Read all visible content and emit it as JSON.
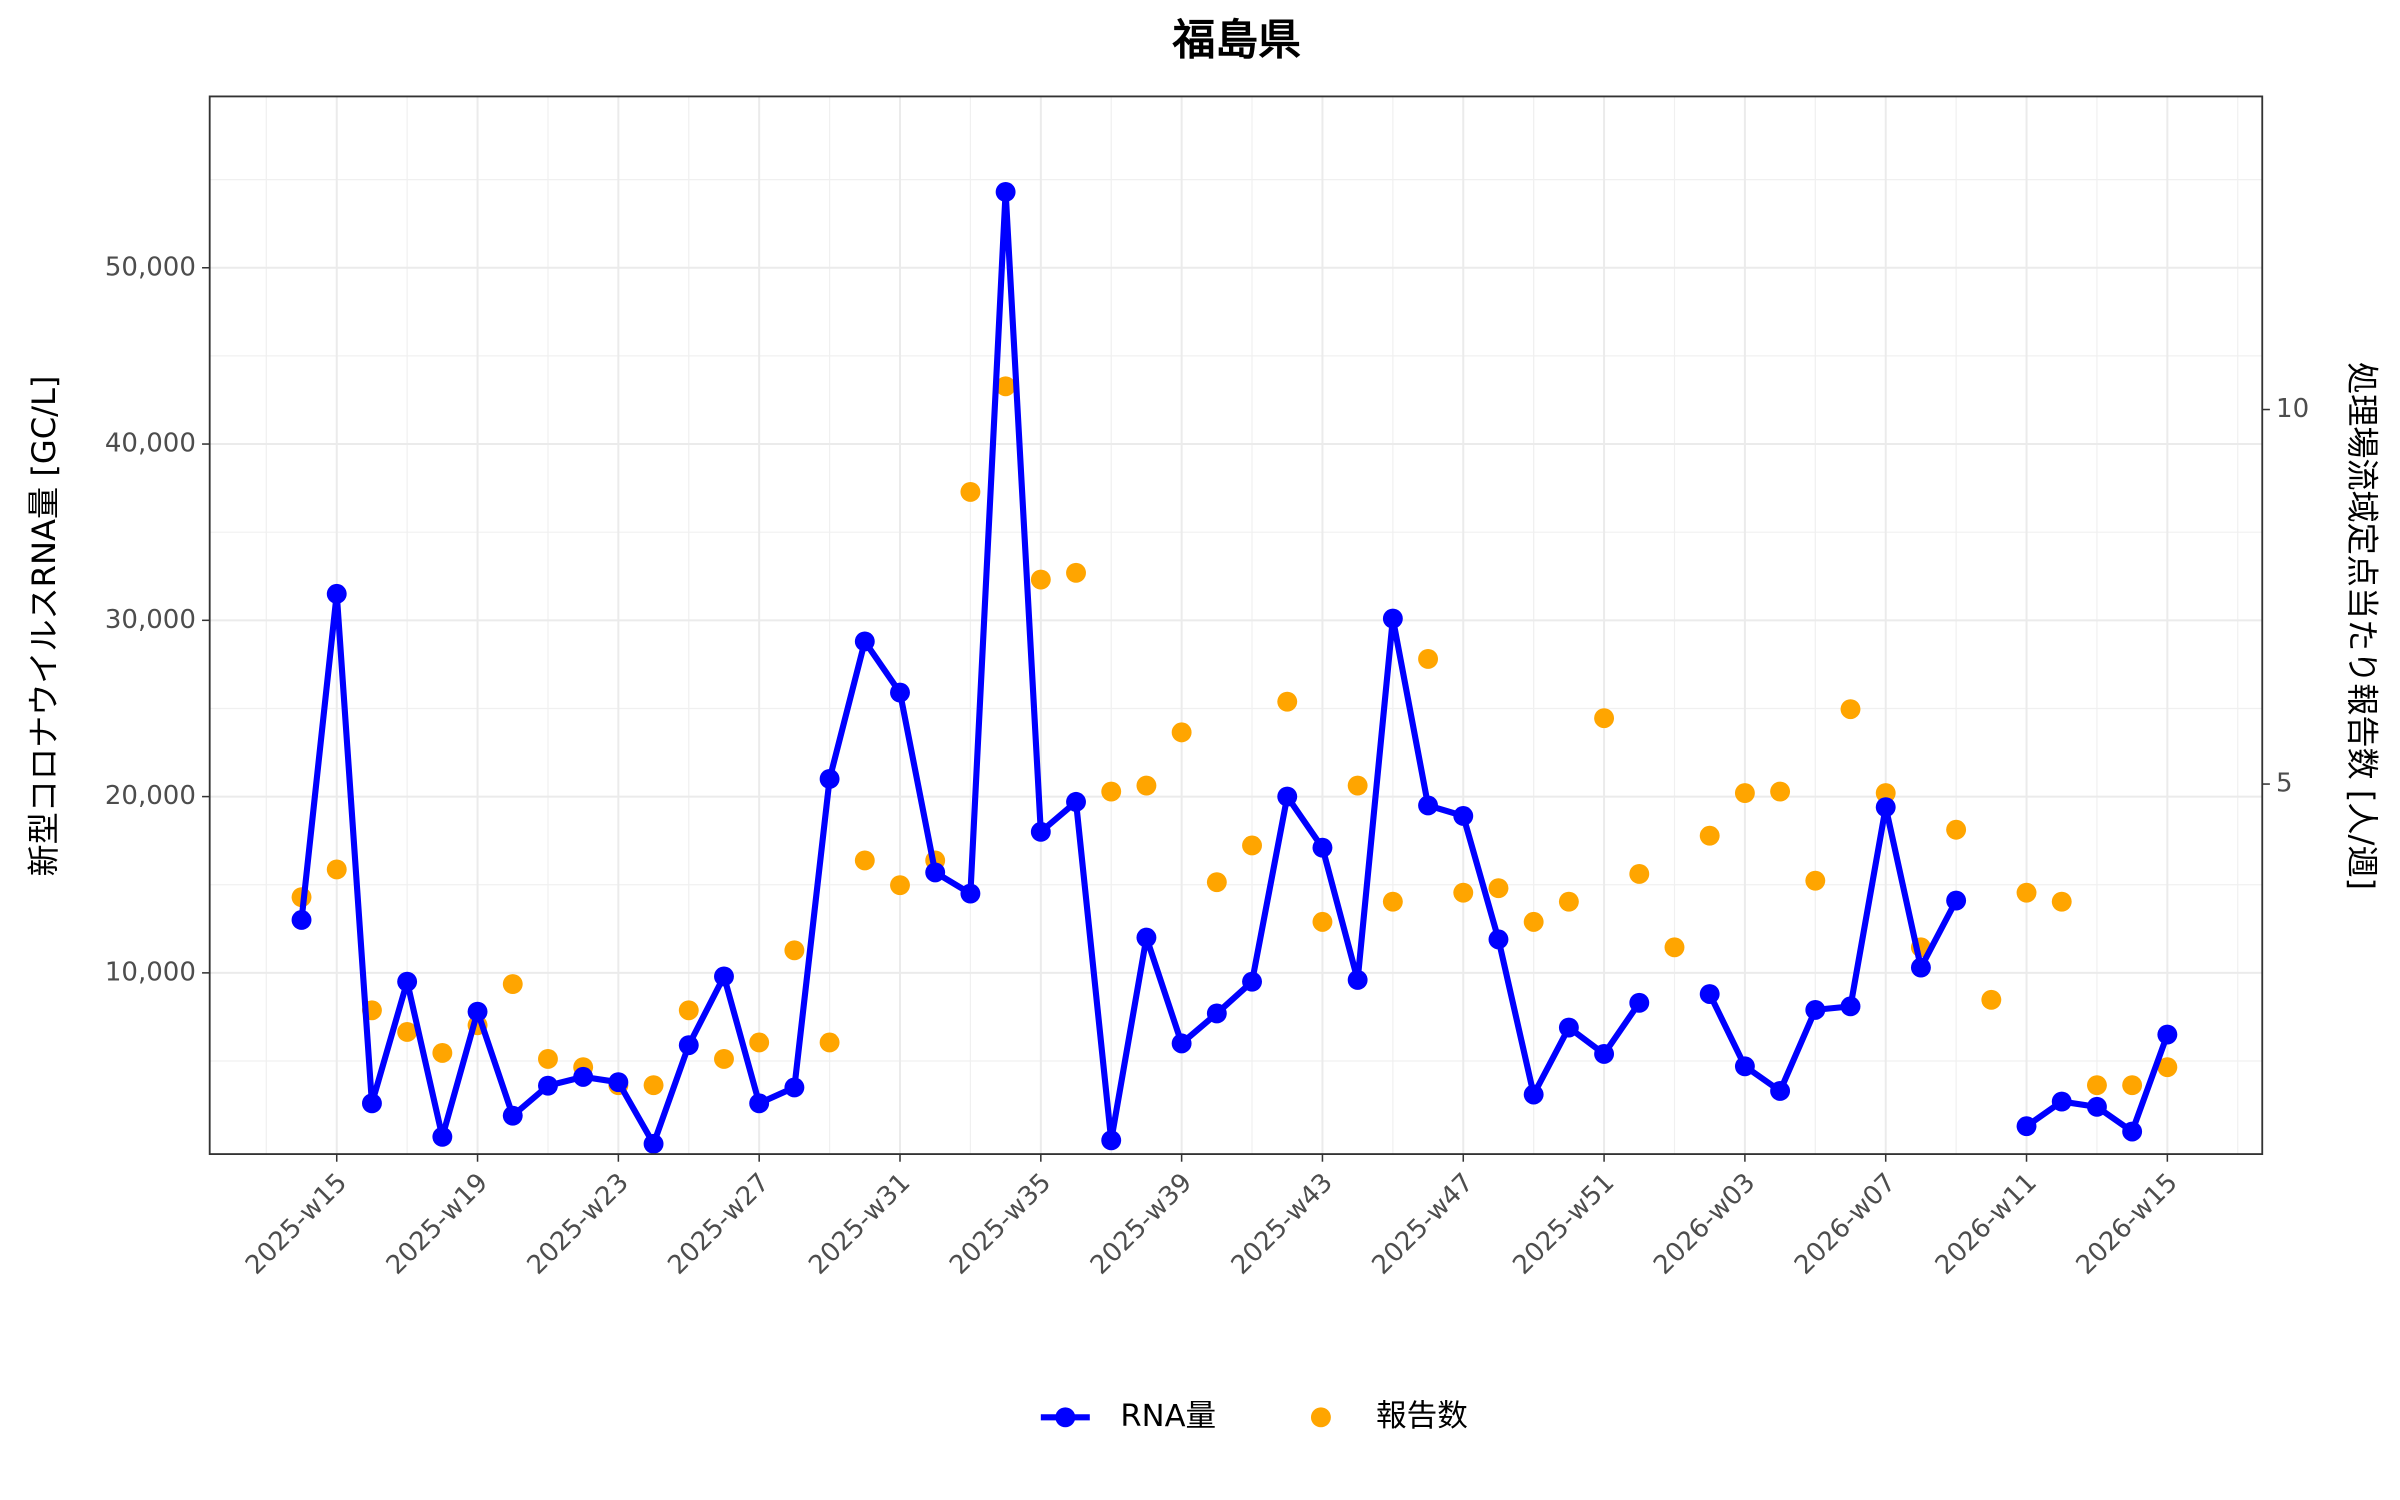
{
  "chart_data": {
    "type": "line-scatter",
    "title": "福島県",
    "y_label": "新型コロナウイルスRNA量 [GC/L]",
    "y2_label": "処理場流域定点当たり報告数 [人/週]",
    "categories": [
      null,
      "2025-w15",
      null,
      null,
      null,
      "2025-w19",
      null,
      null,
      null,
      "2025-w23",
      null,
      null,
      null,
      "2025-w27",
      null,
      null,
      null,
      "2025-w31",
      null,
      null,
      null,
      "2025-w35",
      null,
      null,
      null,
      "2025-w39",
      null,
      null,
      null,
      "2025-w43",
      null,
      null,
      null,
      "2025-w47",
      null,
      null,
      null,
      "2025-w51",
      null,
      null,
      null,
      "2026-w03",
      null,
      null,
      null,
      "2026-w07",
      null,
      null,
      null,
      "2026-w11",
      null,
      null,
      null,
      "2026-w15"
    ],
    "series": [
      {
        "name": "RNA量",
        "color": "#0000ff",
        "type": "line",
        "axis": "y",
        "values": [
          13000,
          31500,
          2600,
          9500,
          700,
          7800,
          1900,
          3600,
          4100,
          3800,
          300,
          5900,
          9800,
          2600,
          3500,
          21000,
          28800,
          25900,
          15700,
          14500,
          54300,
          18000,
          19700,
          500,
          12000,
          6000,
          7700,
          9500,
          20000,
          17100,
          9600,
          30100,
          19500,
          18900,
          11900,
          3100,
          6900,
          5400,
          8300,
          null,
          8800,
          4700,
          3300,
          7900,
          8100,
          19400,
          10300,
          14100,
          null,
          1300,
          2700,
          2400,
          1000,
          6500
        ]
      },
      {
        "name": "報告数",
        "color": "#ffa500",
        "type": "scatter",
        "axis": "y2",
        "values": [
          3.49,
          3.86,
          1.98,
          1.69,
          1.41,
          1.78,
          2.33,
          1.33,
          1.22,
          0.98,
          0.98,
          1.98,
          1.33,
          1.55,
          2.78,
          1.55,
          3.98,
          3.65,
          3.98,
          8.9,
          10.31,
          7.73,
          7.82,
          4.9,
          4.98,
          5.69,
          3.69,
          4.18,
          6.1,
          3.16,
          4.98,
          3.43,
          6.67,
          3.55,
          3.61,
          3.16,
          3.43,
          5.88,
          3.8,
          2.82,
          4.31,
          4.88,
          4.9,
          3.71,
          6.0,
          4.88,
          2.82,
          4.39,
          2.12,
          3.55,
          3.43,
          0.98,
          0.98,
          1.22
        ]
      }
    ],
    "ylim": [
      -280,
      59720
    ],
    "yticks": [
      {
        "value": 10000,
        "label": "10,000"
      },
      {
        "value": 20000,
        "label": "20,000"
      },
      {
        "value": 30000,
        "label": "30,000"
      },
      {
        "value": 40000,
        "label": "40,000"
      },
      {
        "value": 50000,
        "label": "50,000"
      }
    ],
    "y2lim": [
      0.06,
      14.18
    ],
    "y2ticks": [
      5,
      10
    ],
    "grid": true,
    "legend": "bottom"
  }
}
